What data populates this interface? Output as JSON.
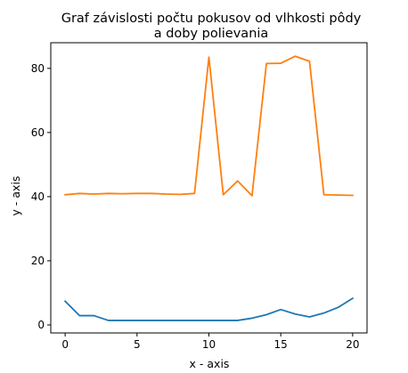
{
  "chart_data": {
    "type": "line",
    "title_lines": [
      "Graf závislosti počtu pokusov od vlhkosti pôdy",
      "a doby polievania"
    ],
    "xlabel": "x - axis",
    "ylabel": "y - axis",
    "xlim": [
      -1,
      21
    ],
    "ylim": [
      -2.5,
      88
    ],
    "xticks": [
      0,
      5,
      10,
      15,
      20
    ],
    "yticks": [
      0,
      20,
      40,
      60,
      80
    ],
    "grid": false,
    "x": [
      0,
      1,
      2,
      3,
      4,
      5,
      6,
      7,
      8,
      9,
      10,
      11,
      12,
      13,
      14,
      15,
      16,
      17,
      18,
      19,
      20
    ],
    "series": [
      {
        "color": "#1f77b4",
        "values": [
          7.4,
          2.9,
          2.9,
          1.4,
          1.4,
          1.4,
          1.4,
          1.4,
          1.4,
          1.4,
          1.4,
          1.4,
          1.4,
          2.1,
          3.2,
          4.8,
          3.4,
          2.5,
          3.7,
          5.5,
          8.3
        ]
      },
      {
        "color": "#ff7f0e",
        "values": [
          40.6,
          41.0,
          40.8,
          41.0,
          40.9,
          41.0,
          41.0,
          40.8,
          40.7,
          41.0,
          83.5,
          40.6,
          44.9,
          40.3,
          81.5,
          81.6,
          83.8,
          82.2,
          40.6,
          40.5,
          40.4
        ]
      }
    ]
  }
}
